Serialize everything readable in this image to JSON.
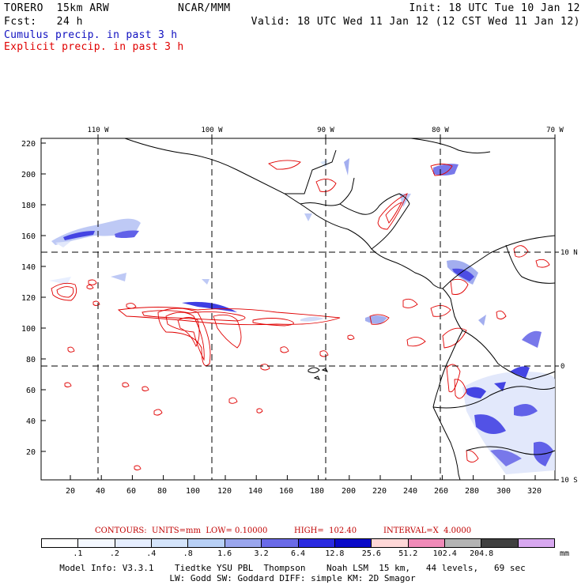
{
  "header": {
    "model": "TORERO  15km ARW",
    "org": "NCAR/MMM",
    "init": "Init: 18 UTC Tue 10 Jan 12",
    "fcst": "Fcst:   24 h",
    "valid": "Valid: 18 UTC Wed 11 Jan 12 (12 CST Wed 11 Jan 12)"
  },
  "legend": {
    "cumulus": "Cumulus precip. in past 3 h",
    "explicit": "Explicit precip. in past 3 h",
    "cumulus_color": "#1010c0",
    "explicit_color": "#e00000"
  },
  "map": {
    "lon_labels": [
      "110 W",
      "100 W",
      "90 W",
      "80 W",
      "70 W"
    ],
    "lat_labels": [
      "10 N",
      "0",
      "10 S"
    ],
    "y_ticks": [
      "220",
      "200",
      "180",
      "160",
      "140",
      "120",
      "100",
      "80",
      "60",
      "40",
      "20"
    ],
    "x_ticks": [
      "20",
      "40",
      "60",
      "80",
      "100",
      "120",
      "140",
      "160",
      "180",
      "200",
      "220",
      "240",
      "260",
      "280",
      "300",
      "320"
    ]
  },
  "contours": {
    "label": "CONTOURS:  UNITS=mm  LOW= 0.10000",
    "high": "HIGH=  102.40",
    "interval": "INTERVAL=X  4.0000"
  },
  "colorbar": {
    "colors": [
      "#ffffff",
      "#f4f8ff",
      "#e6eeff",
      "#d4e4fb",
      "#b8d0f6",
      "#9aa6ee",
      "#6a6ae8",
      "#2a2ae0",
      "#0a0ac8",
      "#ffd8d8",
      "#f08ab8",
      "#b4b4b4",
      "#404040",
      "#d8a8f0"
    ],
    "values": [
      ".1",
      ".2",
      ".4",
      ".8",
      "1.6",
      "3.2",
      "6.4",
      "12.8",
      "25.6",
      "51.2",
      "102.4",
      "204.8"
    ],
    "unit": "mm"
  },
  "model_info": {
    "line1": "Model Info: V3.3.1    Tiedtke YSU PBL  Thompson    Noah LSM  15 km,   44 levels,   69 sec",
    "line2": "LW: Godd SW: Goddard DIFF: simple KM: 2D Smagor"
  }
}
